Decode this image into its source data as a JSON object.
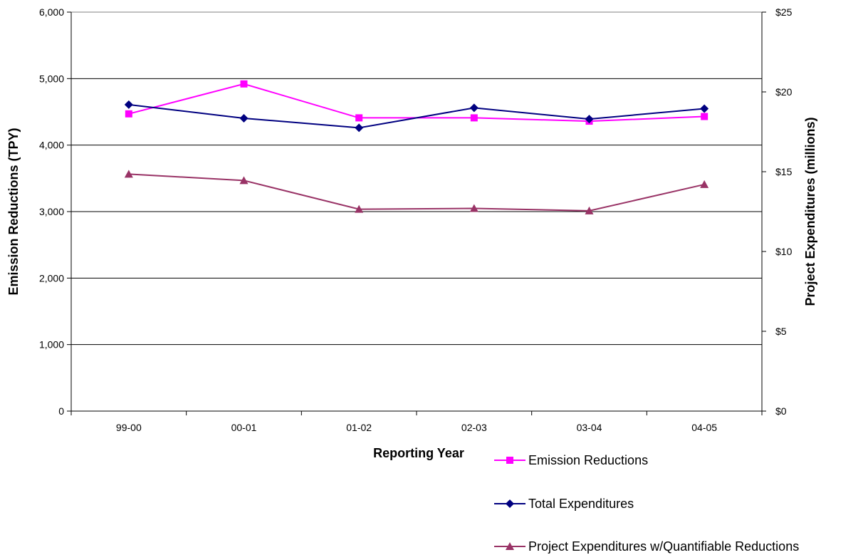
{
  "chart_data": {
    "type": "line",
    "categories": [
      "99-00",
      "00-01",
      "01-02",
      "02-03",
      "03-04",
      "04-05"
    ],
    "xlabel": "Reporting Year",
    "ylabel": "Emission Reductions (TPY)",
    "y2label": "Project Expenditures (millions)",
    "ylim": [
      0,
      6000
    ],
    "y2lim": [
      0,
      25
    ],
    "yticks": [
      "0",
      "1,000",
      "2,000",
      "3,000",
      "4,000",
      "5,000",
      "6,000"
    ],
    "y2ticks": [
      "$0",
      "$5",
      "$10",
      "$15",
      "$20",
      "$25"
    ],
    "grid": true,
    "legend_position": "bottom-right",
    "series": [
      {
        "name": "Emission Reductions",
        "axis": "left",
        "marker": "square",
        "color": "#ff00ff",
        "values": [
          4470,
          4920,
          4410,
          4410,
          4360,
          4430
        ]
      },
      {
        "name": "Total Expenditures",
        "axis": "right",
        "marker": "diamond",
        "color": "#000080",
        "values": [
          19.2,
          18.35,
          17.75,
          19.0,
          18.3,
          18.95
        ]
      },
      {
        "name": "Project Expenditures w/Quantifiable Reductions",
        "axis": "right",
        "marker": "triangle",
        "color": "#993366",
        "values": [
          14.85,
          14.45,
          12.65,
          12.7,
          12.55,
          14.2
        ]
      }
    ]
  }
}
